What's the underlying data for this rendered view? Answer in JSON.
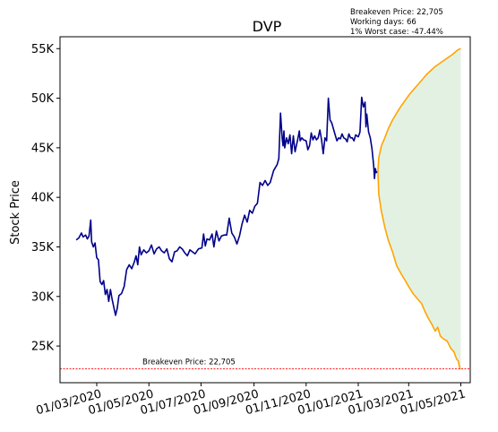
{
  "chart_data": {
    "type": "line",
    "title": "DVP",
    "ylabel": "Stock Price",
    "xlabel": "",
    "ylim": [
      21300,
      56200
    ],
    "xlim": [
      "2020-01-18",
      "2021-05-12"
    ],
    "yticks": [
      {
        "value": 25000,
        "label": "25K"
      },
      {
        "value": 30000,
        "label": "30K"
      },
      {
        "value": 35000,
        "label": "35K"
      },
      {
        "value": 40000,
        "label": "40K"
      },
      {
        "value": 45000,
        "label": "45K"
      },
      {
        "value": 50000,
        "label": "50K"
      },
      {
        "value": 55000,
        "label": "55K"
      }
    ],
    "xticks": [
      {
        "value": "2020-03-01",
        "label": "01/03/2020"
      },
      {
        "value": "2020-05-01",
        "label": "01/05/2020"
      },
      {
        "value": "2020-07-01",
        "label": "01/07/2020"
      },
      {
        "value": "2020-09-01",
        "label": "01/09/2020"
      },
      {
        "value": "2020-11-01",
        "label": "01/11/2020"
      },
      {
        "value": "2021-01-01",
        "label": "01/01/2021"
      },
      {
        "value": "2021-03-01",
        "label": "01/03/2021"
      },
      {
        "value": "2021-05-01",
        "label": "01/05/2021"
      }
    ],
    "info_lines": [
      "Breakeven Price: 22,705",
      "Working days: 66",
      "1% Worst case: -47.44%"
    ],
    "breakeven": {
      "value": 22705,
      "label": "Breakeven Price: 22,705"
    },
    "series": [
      {
        "color": "#00008b",
        "points": [
          [
            "2020-02-06",
            35700
          ],
          [
            "2020-02-09",
            35900
          ],
          [
            "2020-02-12",
            36400
          ],
          [
            "2020-02-14",
            36000
          ],
          [
            "2020-02-17",
            36200
          ],
          [
            "2020-02-19",
            35800
          ],
          [
            "2020-02-21",
            36100
          ],
          [
            "2020-02-23",
            37700
          ],
          [
            "2020-02-24",
            35500
          ],
          [
            "2020-02-26",
            35000
          ],
          [
            "2020-02-28",
            35400
          ],
          [
            "2020-03-01",
            33900
          ],
          [
            "2020-03-03",
            33700
          ],
          [
            "2020-03-05",
            31500
          ],
          [
            "2020-03-07",
            31200
          ],
          [
            "2020-03-09",
            31600
          ],
          [
            "2020-03-11",
            30200
          ],
          [
            "2020-03-13",
            30700
          ],
          [
            "2020-03-15",
            29500
          ],
          [
            "2020-03-17",
            30700
          ],
          [
            "2020-03-19",
            29700
          ],
          [
            "2020-03-21",
            28900
          ],
          [
            "2020-03-23",
            28100
          ],
          [
            "2020-03-25",
            28800
          ],
          [
            "2020-03-27",
            30100
          ],
          [
            "2020-03-30",
            30300
          ],
          [
            "2020-04-02",
            31000
          ],
          [
            "2020-04-05",
            32700
          ],
          [
            "2020-04-08",
            33200
          ],
          [
            "2020-04-11",
            32800
          ],
          [
            "2020-04-14",
            33500
          ],
          [
            "2020-04-16",
            34100
          ],
          [
            "2020-04-18",
            33200
          ],
          [
            "2020-04-20",
            35000
          ],
          [
            "2020-04-22",
            34200
          ],
          [
            "2020-04-25",
            34700
          ],
          [
            "2020-04-28",
            34400
          ],
          [
            "2020-05-01",
            34600
          ],
          [
            "2020-05-04",
            35200
          ],
          [
            "2020-05-07",
            34300
          ],
          [
            "2020-05-10",
            34800
          ],
          [
            "2020-05-13",
            35000
          ],
          [
            "2020-05-16",
            34600
          ],
          [
            "2020-05-19",
            34400
          ],
          [
            "2020-05-22",
            34800
          ],
          [
            "2020-05-25",
            33800
          ],
          [
            "2020-05-28",
            33500
          ],
          [
            "2020-05-31",
            34500
          ],
          [
            "2020-06-03",
            34600
          ],
          [
            "2020-06-06",
            35000
          ],
          [
            "2020-06-09",
            34800
          ],
          [
            "2020-06-12",
            34400
          ],
          [
            "2020-06-15",
            34100
          ],
          [
            "2020-06-18",
            34700
          ],
          [
            "2020-06-21",
            34500
          ],
          [
            "2020-06-24",
            34300
          ],
          [
            "2020-06-28",
            34800
          ],
          [
            "2020-07-02",
            34900
          ],
          [
            "2020-07-04",
            36300
          ],
          [
            "2020-07-06",
            35100
          ],
          [
            "2020-07-08",
            35800
          ],
          [
            "2020-07-11",
            35700
          ],
          [
            "2020-07-14",
            36300
          ],
          [
            "2020-07-16",
            35000
          ],
          [
            "2020-07-19",
            36600
          ],
          [
            "2020-07-22",
            35600
          ],
          [
            "2020-07-25",
            36100
          ],
          [
            "2020-07-28",
            36200
          ],
          [
            "2020-07-31",
            36200
          ],
          [
            "2020-08-03",
            37900
          ],
          [
            "2020-08-06",
            36400
          ],
          [
            "2020-08-09",
            36000
          ],
          [
            "2020-08-12",
            35300
          ],
          [
            "2020-08-15",
            36100
          ],
          [
            "2020-08-18",
            37300
          ],
          [
            "2020-08-21",
            38200
          ],
          [
            "2020-08-24",
            37500
          ],
          [
            "2020-08-27",
            38700
          ],
          [
            "2020-08-30",
            38400
          ],
          [
            "2020-09-02",
            39100
          ],
          [
            "2020-09-05",
            39400
          ],
          [
            "2020-09-08",
            41500
          ],
          [
            "2020-09-11",
            41200
          ],
          [
            "2020-09-14",
            41700
          ],
          [
            "2020-09-17",
            41200
          ],
          [
            "2020-09-20",
            41500
          ],
          [
            "2020-09-24",
            42700
          ],
          [
            "2020-09-28",
            43300
          ],
          [
            "2020-09-30",
            43900
          ],
          [
            "2020-10-02",
            48500
          ],
          [
            "2020-10-04",
            45900
          ],
          [
            "2020-10-05",
            45200
          ],
          [
            "2020-10-06",
            46700
          ],
          [
            "2020-10-07",
            45000
          ],
          [
            "2020-10-09",
            46000
          ],
          [
            "2020-10-11",
            45400
          ],
          [
            "2020-10-13",
            46300
          ],
          [
            "2020-10-15",
            44400
          ],
          [
            "2020-10-17",
            46200
          ],
          [
            "2020-10-19",
            44600
          ],
          [
            "2020-10-22",
            45800
          ],
          [
            "2020-10-24",
            46700
          ],
          [
            "2020-10-25",
            45700
          ],
          [
            "2020-10-27",
            46000
          ],
          [
            "2020-10-29",
            45800
          ],
          [
            "2020-11-01",
            45700
          ],
          [
            "2020-11-03",
            44800
          ],
          [
            "2020-11-05",
            45200
          ],
          [
            "2020-11-07",
            46500
          ],
          [
            "2020-11-09",
            45800
          ],
          [
            "2020-11-11",
            46200
          ],
          [
            "2020-11-13",
            45800
          ],
          [
            "2020-11-15",
            46000
          ],
          [
            "2020-11-17",
            46800
          ],
          [
            "2020-11-19",
            45800
          ],
          [
            "2020-11-21",
            44400
          ],
          [
            "2020-11-23",
            46000
          ],
          [
            "2020-11-25",
            45700
          ],
          [
            "2020-11-27",
            50000
          ],
          [
            "2020-11-29",
            47800
          ],
          [
            "2020-12-01",
            47500
          ],
          [
            "2020-12-03",
            46900
          ],
          [
            "2020-12-05",
            46300
          ],
          [
            "2020-12-07",
            45700
          ],
          [
            "2020-12-09",
            46000
          ],
          [
            "2020-12-11",
            45900
          ],
          [
            "2020-12-13",
            46400
          ],
          [
            "2020-12-15",
            46000
          ],
          [
            "2020-12-17",
            45900
          ],
          [
            "2020-12-19",
            45600
          ],
          [
            "2020-12-21",
            46400
          ],
          [
            "2020-12-23",
            46000
          ],
          [
            "2020-12-25",
            46000
          ],
          [
            "2020-12-27",
            45700
          ],
          [
            "2020-12-29",
            46300
          ],
          [
            "2021-01-01",
            46100
          ],
          [
            "2021-01-03",
            46600
          ],
          [
            "2021-01-05",
            50100
          ],
          [
            "2021-01-07",
            49100
          ],
          [
            "2021-01-09",
            49600
          ],
          [
            "2021-01-10",
            47100
          ],
          [
            "2021-01-11",
            48400
          ],
          [
            "2021-01-13",
            46600
          ],
          [
            "2021-01-15",
            46000
          ],
          [
            "2021-01-17",
            44900
          ],
          [
            "2021-01-19",
            43200
          ],
          [
            "2021-01-20",
            41900
          ],
          [
            "2021-01-21",
            42900
          ],
          [
            "2021-01-22",
            42500
          ],
          [
            "2021-01-24",
            42600
          ]
        ]
      },
      {
        "color": "#ffa500",
        "points": [
          [
            "2021-01-24",
            42600
          ],
          [
            "2021-01-25",
            44000
          ],
          [
            "2021-01-28",
            45200
          ],
          [
            "2021-02-01",
            46000
          ],
          [
            "2021-02-05",
            46900
          ],
          [
            "2021-02-10",
            47800
          ],
          [
            "2021-02-15",
            48500
          ],
          [
            "2021-02-20",
            49200
          ],
          [
            "2021-02-25",
            49800
          ],
          [
            "2021-03-02",
            50400
          ],
          [
            "2021-03-07",
            50900
          ],
          [
            "2021-03-12",
            51400
          ],
          [
            "2021-03-17",
            51900
          ],
          [
            "2021-03-22",
            52400
          ],
          [
            "2021-03-27",
            52800
          ],
          [
            "2021-04-01",
            53200
          ],
          [
            "2021-04-06",
            53500
          ],
          [
            "2021-04-11",
            53800
          ],
          [
            "2021-04-16",
            54100
          ],
          [
            "2021-04-21",
            54400
          ],
          [
            "2021-04-25",
            54700
          ],
          [
            "2021-04-28",
            54900
          ],
          [
            "2021-05-01",
            55000
          ]
        ]
      },
      {
        "color": "#ffa500",
        "points": [
          [
            "2021-01-24",
            42600
          ],
          [
            "2021-01-25",
            40300
          ],
          [
            "2021-01-28",
            38600
          ],
          [
            "2021-02-01",
            37000
          ],
          [
            "2021-02-05",
            35700
          ],
          [
            "2021-02-10",
            34500
          ],
          [
            "2021-02-15",
            33100
          ],
          [
            "2021-02-20",
            32300
          ],
          [
            "2021-02-25",
            31600
          ],
          [
            "2021-03-01",
            31000
          ],
          [
            "2021-03-06",
            30300
          ],
          [
            "2021-03-11",
            29800
          ],
          [
            "2021-03-16",
            29300
          ],
          [
            "2021-03-20",
            28500
          ],
          [
            "2021-03-24",
            27800
          ],
          [
            "2021-03-28",
            27200
          ],
          [
            "2021-04-01",
            26500
          ],
          [
            "2021-04-04",
            26900
          ],
          [
            "2021-04-07",
            26000
          ],
          [
            "2021-04-11",
            25700
          ],
          [
            "2021-04-15",
            25500
          ],
          [
            "2021-04-19",
            24800
          ],
          [
            "2021-04-23",
            24400
          ],
          [
            "2021-04-26",
            23700
          ],
          [
            "2021-04-28",
            23500
          ],
          [
            "2021-04-30",
            22700
          ],
          [
            "2021-05-01",
            22705
          ]
        ]
      }
    ]
  }
}
